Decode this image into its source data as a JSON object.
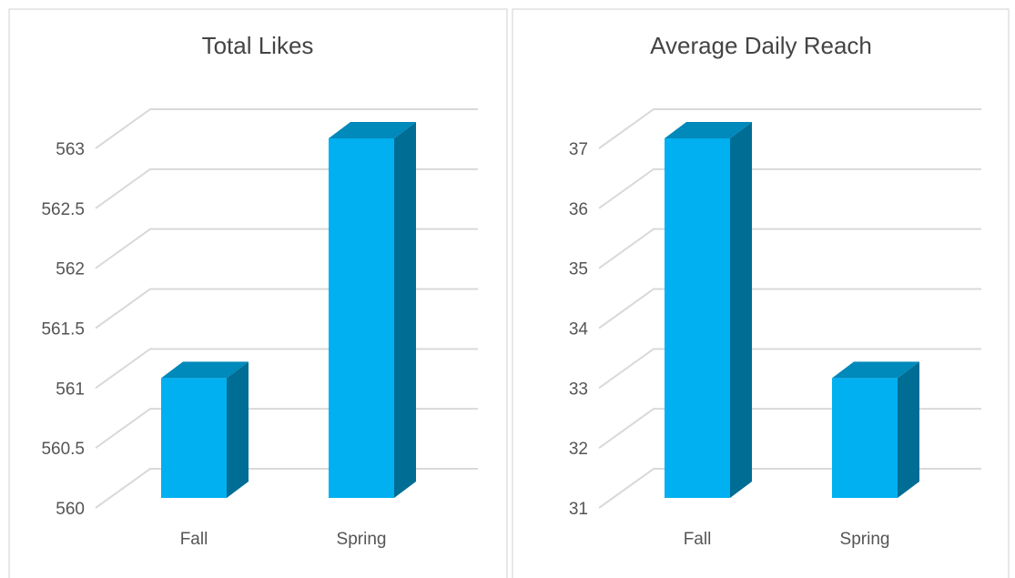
{
  "chart_data": [
    {
      "type": "bar3d",
      "title": "Total Likes",
      "categories": [
        "Fall",
        "Spring"
      ],
      "values": [
        561,
        563
      ],
      "color": "#00b0f0",
      "ylim": [
        560,
        563
      ],
      "yticks": [
        560,
        560.5,
        561,
        561.5,
        562,
        562.5,
        563
      ],
      "grid": true
    },
    {
      "type": "bar3d",
      "title": "Average Daily Reach",
      "categories": [
        "Fall",
        "Spring"
      ],
      "values": [
        37,
        33
      ],
      "color": "#00b0f0",
      "ylim": [
        31,
        37
      ],
      "yticks": [
        31,
        32,
        33,
        34,
        35,
        36,
        37
      ],
      "grid": true
    }
  ]
}
